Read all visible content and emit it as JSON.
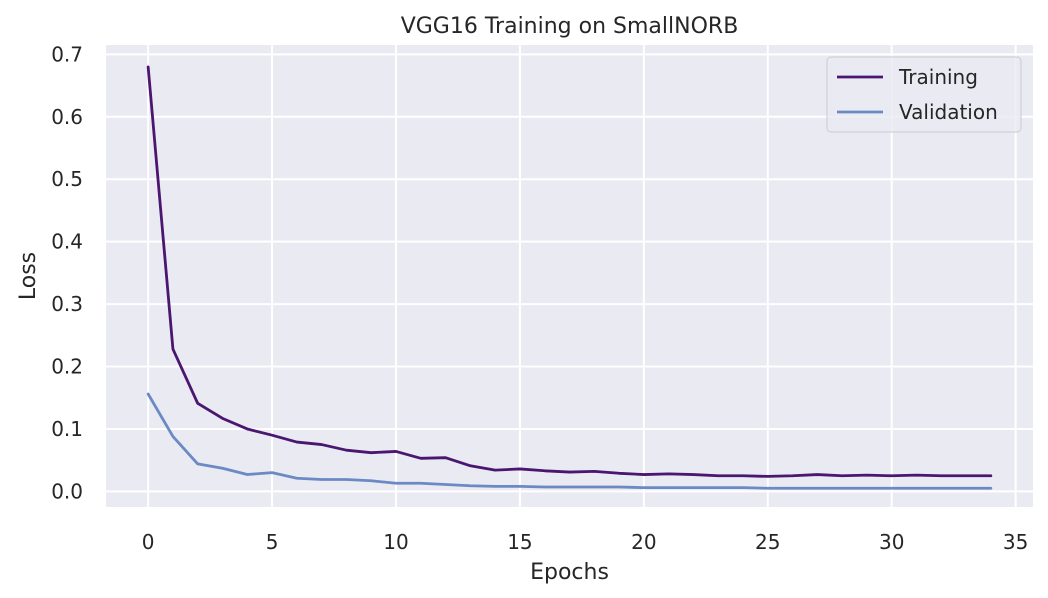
{
  "chart_data": {
    "type": "line",
    "title": "VGG16 Training on SmallNORB",
    "xlabel": "Epochs",
    "ylabel": "Loss",
    "xlim": [
      -1.7,
      35.7
    ],
    "ylim": [
      -0.025,
      0.715
    ],
    "xticks": [
      0,
      5,
      10,
      15,
      20,
      25,
      30,
      35
    ],
    "yticks": [
      0.0,
      0.1,
      0.2,
      0.3,
      0.4,
      0.5,
      0.6,
      0.7
    ],
    "grid": true,
    "legend_position": "top-right",
    "x": [
      0,
      1,
      2,
      3,
      4,
      5,
      6,
      7,
      8,
      9,
      10,
      11,
      12,
      13,
      14,
      15,
      16,
      17,
      18,
      19,
      20,
      21,
      22,
      23,
      24,
      25,
      26,
      27,
      28,
      29,
      30,
      31,
      32,
      33,
      34
    ],
    "series": [
      {
        "name": "Training",
        "color": "#4a1670",
        "values": [
          0.68,
          0.228,
          0.141,
          0.117,
          0.1,
          0.09,
          0.079,
          0.075,
          0.066,
          0.062,
          0.064,
          0.053,
          0.054,
          0.041,
          0.034,
          0.036,
          0.033,
          0.031,
          0.032,
          0.029,
          0.027,
          0.028,
          0.027,
          0.025,
          0.025,
          0.024,
          0.025,
          0.027,
          0.025,
          0.026,
          0.025,
          0.026,
          0.025,
          0.025,
          0.025
        ]
      },
      {
        "name": "Validation",
        "color": "#6b8ac4",
        "values": [
          0.156,
          0.088,
          0.044,
          0.037,
          0.027,
          0.03,
          0.021,
          0.019,
          0.019,
          0.017,
          0.013,
          0.013,
          0.011,
          0.009,
          0.008,
          0.008,
          0.007,
          0.007,
          0.007,
          0.007,
          0.006,
          0.006,
          0.006,
          0.006,
          0.006,
          0.005,
          0.005,
          0.005,
          0.005,
          0.005,
          0.005,
          0.005,
          0.005,
          0.005,
          0.005
        ]
      }
    ]
  },
  "colors": {
    "plot_background": "#eaeaf2",
    "grid": "#ffffff",
    "text": "#262626"
  }
}
